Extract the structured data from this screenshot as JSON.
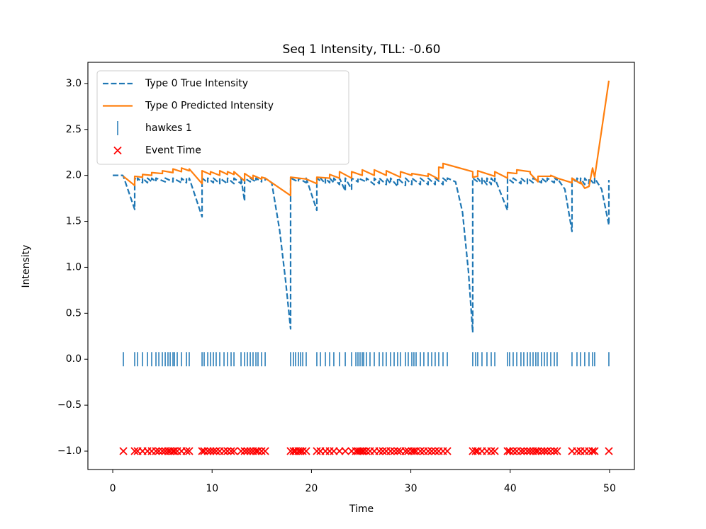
{
  "chart_data": {
    "type": "line",
    "title": "Seq 1 Intensity, TLL: -0.60",
    "x_label": "Time",
    "y_label": "Intensity",
    "xlim": [
      -2.5,
      52.5
    ],
    "ylim": [
      -1.2,
      3.23
    ],
    "xticks": [
      0,
      10,
      20,
      30,
      40,
      50
    ],
    "yticks": [
      {
        "value": -1.0,
        "label": "−1.0"
      },
      {
        "value": -0.5,
        "label": "−0.5"
      },
      {
        "value": 0.0,
        "label": "0.0"
      },
      {
        "value": 0.5,
        "label": "0.5"
      },
      {
        "value": 1.0,
        "label": "1.0"
      },
      {
        "value": 1.5,
        "label": "1.5"
      },
      {
        "value": 2.0,
        "label": "2.0"
      },
      {
        "value": 2.5,
        "label": "2.5"
      },
      {
        "value": 3.0,
        "label": "3.0"
      }
    ],
    "grid": false,
    "legend": "upper left",
    "event_times": [
      1.07,
      2.21,
      2.5,
      3.0,
      3.5,
      3.92,
      4.35,
      4.64,
      4.99,
      5.28,
      5.56,
      5.78,
      6.06,
      6.21,
      6.49,
      6.92,
      7.42,
      7.7,
      8.99,
      9.2,
      9.56,
      9.84,
      10.13,
      10.41,
      10.77,
      11.2,
      11.55,
      11.91,
      12.2,
      12.91,
      13.27,
      13.55,
      13.84,
      14.12,
      14.41,
      14.62,
      14.98,
      15.34,
      17.9,
      18.19,
      18.4,
      18.69,
      18.9,
      19.12,
      19.47,
      20.54,
      20.9,
      21.4,
      21.83,
      22.25,
      22.82,
      23.4,
      24.04,
      24.47,
      24.68,
      24.89,
      25.11,
      25.25,
      25.53,
      25.89,
      26.32,
      26.82,
      27.18,
      27.53,
      27.96,
      28.32,
      28.67,
      28.96,
      29.46,
      29.74,
      30.1,
      30.31,
      30.53,
      30.96,
      31.31,
      31.74,
      32.1,
      32.45,
      32.81,
      33.24,
      33.67,
      36.23,
      36.52,
      36.73,
      37.16,
      37.66,
      38.09,
      38.45,
      39.73,
      39.94,
      40.3,
      40.66,
      41.08,
      41.37,
      41.73,
      42.01,
      42.3,
      42.58,
      42.8,
      43.15,
      43.44,
      43.72,
      44.08,
      44.44,
      44.72,
      46.22,
      46.72,
      47.08,
      47.5,
      47.93,
      48.29,
      48.5,
      49.93
    ],
    "series": [
      {
        "name": "Type 0 True Intensity",
        "color": "#1f77b4",
        "style": "dashed",
        "x": [
          0,
          1.0,
          1.07,
          2.21,
          2.21,
          2.5,
          2.5,
          3.0,
          3.0,
          3.5,
          3.5,
          3.92,
          3.92,
          4.35,
          4.35,
          5.28,
          5.28,
          6.06,
          6.06,
          6.92,
          6.92,
          7.42,
          7.42,
          7.7,
          7.7,
          8.99,
          8.99,
          9.56,
          9.56,
          10.13,
          10.13,
          10.77,
          10.77,
          11.55,
          11.55,
          12.2,
          12.2,
          12.91,
          12.91,
          13.27,
          13.27,
          13.84,
          13.84,
          14.41,
          14.41,
          14.98,
          14.98,
          15.34,
          15.34,
          16.0,
          16.8,
          17.4,
          17.9,
          17.9,
          18.69,
          18.69,
          19.47,
          19.47,
          20.54,
          20.54,
          20.9,
          20.9,
          21.4,
          21.4,
          21.83,
          21.83,
          22.25,
          22.25,
          22.82,
          22.82,
          23.4,
          23.4,
          24.04,
          24.04,
          24.68,
          24.68,
          25.53,
          25.53,
          26.32,
          26.32,
          26.82,
          26.82,
          27.53,
          27.53,
          27.96,
          27.96,
          28.67,
          28.67,
          29.46,
          29.46,
          30.1,
          30.1,
          30.96,
          30.96,
          31.74,
          31.74,
          32.45,
          32.45,
          33.24,
          33.24,
          33.67,
          33.67,
          34.5,
          35.2,
          35.8,
          36.23,
          36.23,
          36.73,
          36.73,
          37.16,
          37.16,
          37.66,
          37.66,
          38.09,
          38.09,
          38.45,
          38.45,
          39.73,
          39.73,
          40.3,
          40.3,
          41.08,
          41.08,
          41.73,
          41.73,
          42.3,
          42.3,
          43.15,
          43.15,
          43.72,
          43.72,
          44.44,
          44.44,
          44.72,
          44.72,
          45.5,
          46.22,
          46.22,
          46.72,
          46.72,
          47.08,
          47.08,
          47.5,
          47.5,
          47.93,
          47.93,
          48.5,
          48.5,
          49.2,
          49.93,
          49.93
        ],
        "values": [
          2.0,
          2.0,
          1.99,
          1.63,
          1.97,
          1.94,
          1.97,
          1.92,
          1.97,
          1.92,
          1.97,
          1.93,
          1.97,
          1.93,
          1.97,
          1.93,
          1.97,
          1.93,
          1.97,
          1.92,
          1.97,
          1.92,
          1.97,
          1.95,
          1.97,
          1.55,
          1.97,
          1.92,
          1.97,
          1.92,
          1.97,
          1.91,
          1.97,
          1.91,
          1.97,
          1.91,
          1.97,
          1.91,
          1.97,
          1.72,
          1.97,
          1.93,
          1.97,
          1.93,
          1.97,
          1.93,
          1.97,
          1.95,
          1.97,
          1.92,
          1.4,
          0.85,
          0.33,
          1.97,
          1.93,
          1.97,
          1.92,
          1.97,
          1.62,
          1.97,
          1.94,
          1.97,
          1.91,
          1.97,
          1.92,
          1.97,
          1.92,
          1.97,
          1.9,
          1.97,
          1.83,
          1.97,
          1.85,
          1.97,
          1.93,
          1.97,
          1.93,
          1.97,
          1.9,
          1.97,
          1.91,
          1.97,
          1.9,
          1.97,
          1.91,
          1.97,
          1.88,
          1.97,
          1.89,
          1.97,
          1.9,
          1.97,
          1.9,
          1.97,
          1.9,
          1.97,
          1.9,
          1.97,
          1.9,
          1.97,
          1.93,
          1.97,
          1.93,
          1.6,
          0.95,
          0.29,
          1.97,
          1.93,
          1.97,
          1.91,
          1.97,
          1.9,
          1.97,
          1.9,
          1.97,
          1.92,
          1.97,
          1.62,
          1.97,
          1.92,
          1.97,
          1.91,
          1.97,
          1.91,
          1.97,
          1.92,
          1.97,
          1.92,
          1.97,
          1.92,
          1.97,
          1.92,
          1.97,
          1.95,
          1.97,
          1.85,
          1.39,
          1.97,
          1.92,
          1.97,
          1.93,
          1.97,
          1.9,
          1.97,
          1.91,
          1.97,
          1.9,
          1.97,
          1.85,
          1.46,
          1.95
        ]
      },
      {
        "name": "Type 0 Predicted Intensity",
        "color": "#ff7f0e",
        "style": "solid",
        "x": [
          1.07,
          2.21,
          2.21,
          3.0,
          3.0,
          3.92,
          3.92,
          5.0,
          5.0,
          6.06,
          6.06,
          6.92,
          6.92,
          7.7,
          7.7,
          8.99,
          8.99,
          9.84,
          9.84,
          10.77,
          10.77,
          11.55,
          11.55,
          12.2,
          12.2,
          13.27,
          13.27,
          14.12,
          14.12,
          14.98,
          14.98,
          15.34,
          17.9,
          17.9,
          19.47,
          20.54,
          20.54,
          21.83,
          21.83,
          22.82,
          22.82,
          24.04,
          24.04,
          25.11,
          25.11,
          26.32,
          26.32,
          27.53,
          27.53,
          28.96,
          28.96,
          30.1,
          30.1,
          31.74,
          31.74,
          32.81,
          32.81,
          33.24,
          33.24,
          36.23,
          36.23,
          36.73,
          36.73,
          38.45,
          38.45,
          39.73,
          39.73,
          40.66,
          40.66,
          42.01,
          42.01,
          42.8,
          42.8,
          44.08,
          44.08,
          44.72,
          46.22,
          46.22,
          47.08,
          47.08,
          47.5,
          47.93,
          48.29,
          48.5,
          49.93
        ],
        "values": [
          1.99,
          1.89,
          1.99,
          1.98,
          2.01,
          2.0,
          2.03,
          2.02,
          2.05,
          2.03,
          2.07,
          2.04,
          2.08,
          2.05,
          2.07,
          1.91,
          2.05,
          2.01,
          2.04,
          2.0,
          2.05,
          2.01,
          2.04,
          2.01,
          2.04,
          1.94,
          2.02,
          1.96,
          2.0,
          1.96,
          1.98,
          1.97,
          1.78,
          1.98,
          1.96,
          1.91,
          1.98,
          1.97,
          2.01,
          1.97,
          2.04,
          1.97,
          2.04,
          2.0,
          2.06,
          2.0,
          2.06,
          2.0,
          2.05,
          1.98,
          2.04,
          2.0,
          2.02,
          1.99,
          2.02,
          1.96,
          2.09,
          2.08,
          2.13,
          2.04,
          1.98,
          1.99,
          2.05,
          1.99,
          2.04,
          1.97,
          2.03,
          2.02,
          2.06,
          2.04,
          2.02,
          1.93,
          1.99,
          1.99,
          2.0,
          1.97,
          1.92,
          1.97,
          1.91,
          1.93,
          1.86,
          1.88,
          2.08,
          1.98,
          3.03
        ]
      },
      {
        "name": "hawkes 1",
        "color": "#1f77b4",
        "marker": "|",
        "y": 0
      },
      {
        "name": "Event Time",
        "color": "#ff0000",
        "marker": "x",
        "y": -1
      }
    ]
  }
}
